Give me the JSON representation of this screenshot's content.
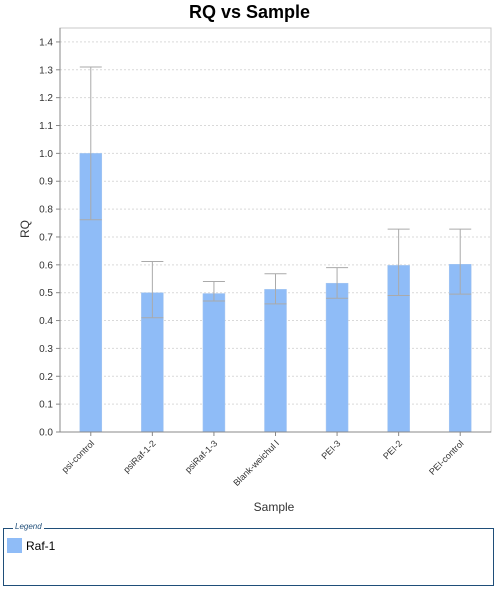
{
  "chart_data": {
    "type": "bar",
    "title": "RQ vs Sample",
    "xlabel": "Sample",
    "ylabel": "RQ",
    "categories": [
      "psi-control",
      "psiRaf-1-2",
      "psiRaf-1-3",
      "Blank-weichul l",
      "PEI-3",
      "PEI-2",
      "PEI-control"
    ],
    "series": [
      {
        "name": "Raf-1",
        "color": "#8fbcf7",
        "values": [
          1.0,
          0.5,
          0.497,
          0.512,
          0.534,
          0.598,
          0.602
        ],
        "error_high": [
          1.31,
          0.612,
          0.54,
          0.568,
          0.59,
          0.728,
          0.728
        ],
        "error_low": [
          0.762,
          0.41,
          0.47,
          0.46,
          0.48,
          0.49,
          0.495
        ]
      }
    ],
    "ylim": [
      0,
      1.45
    ],
    "yticks": [
      "0.0",
      "0.1",
      "0.2",
      "0.3",
      "0.4",
      "0.5",
      "0.6",
      "0.7",
      "0.8",
      "0.9",
      "1.0",
      "1.1",
      "1.2",
      "1.3",
      "1.4"
    ],
    "grid": true,
    "legend_position": "bottom"
  },
  "legend": {
    "caption": "Legend",
    "items": [
      {
        "label": "Raf-1",
        "color": "#8fbcf7"
      }
    ]
  }
}
